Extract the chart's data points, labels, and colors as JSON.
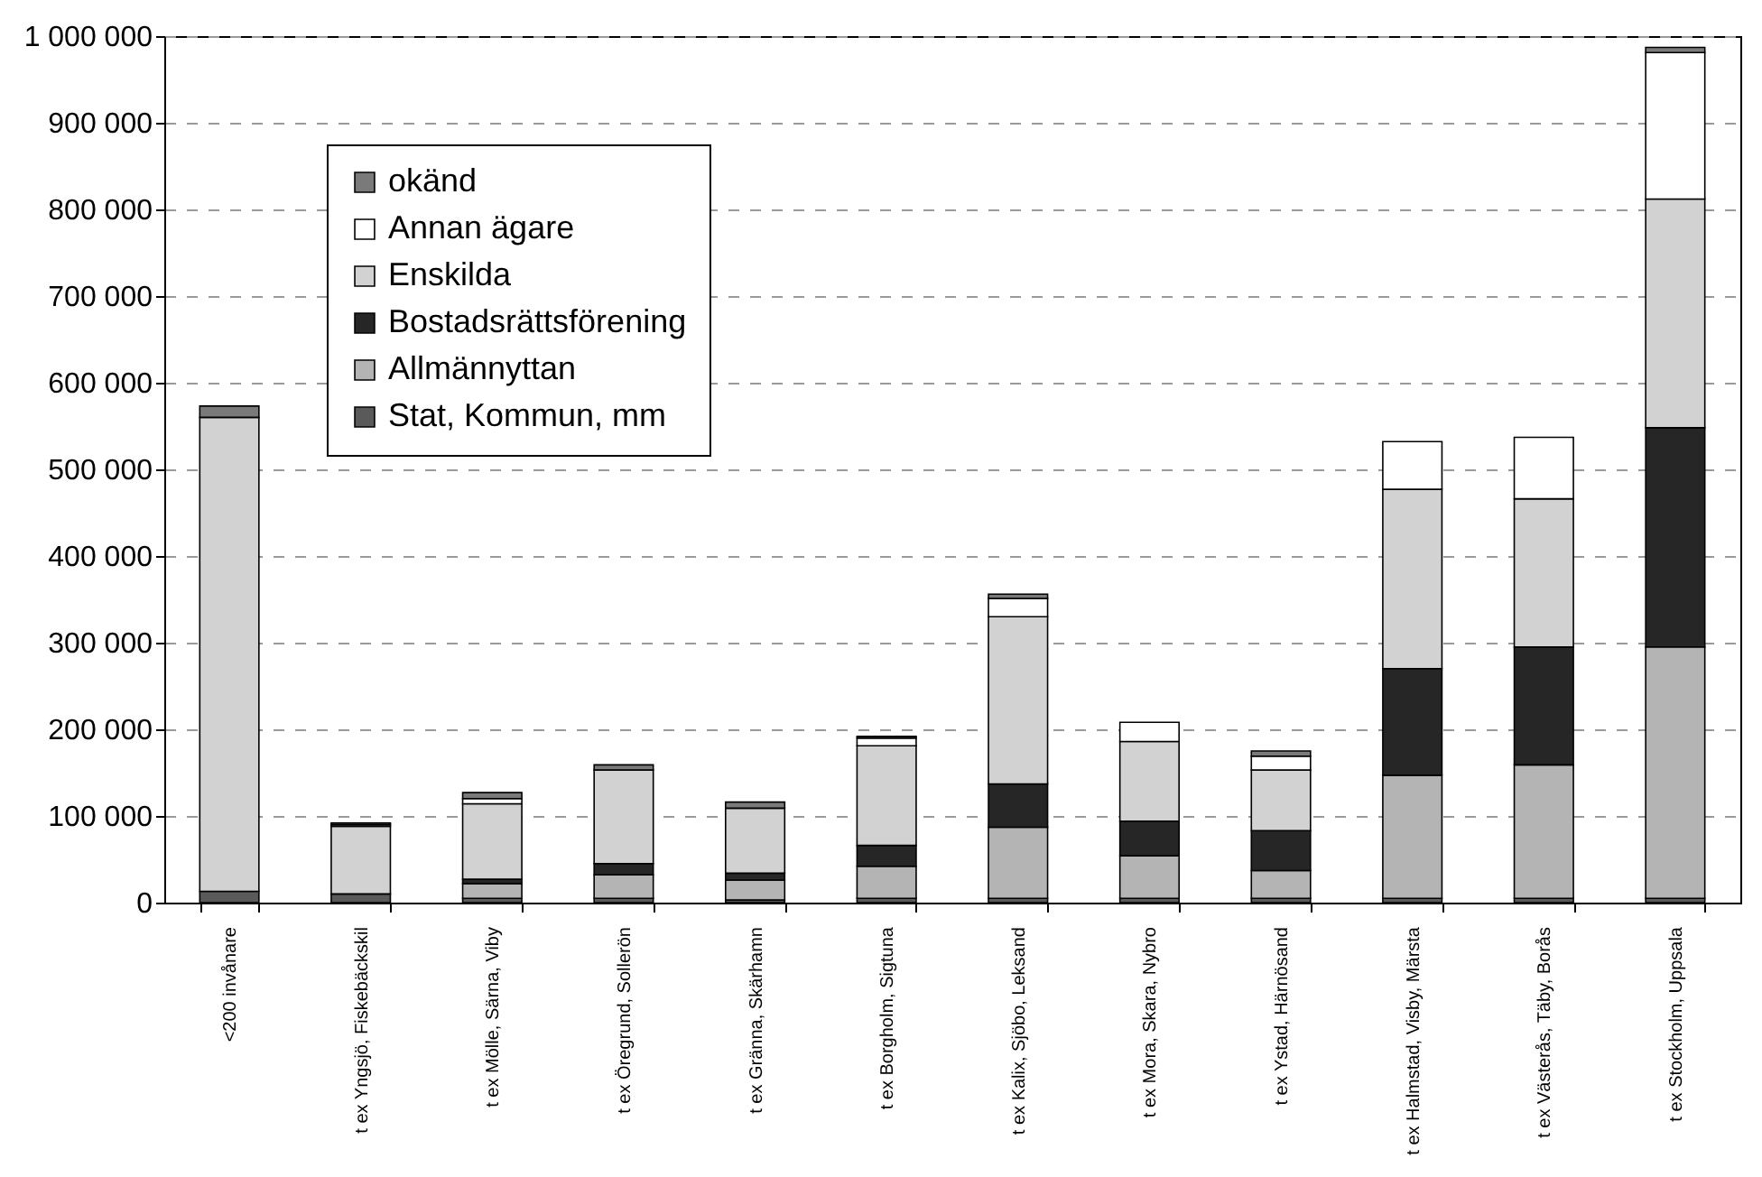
{
  "chart_data": {
    "type": "bar",
    "stacked": true,
    "categories": [
      "<200 invånare",
      "t ex Yngsjö, Fiskebäckskil",
      "t ex Mölle, Särna, Viby",
      "t ex Öregrund, Sollerön",
      "t ex Gränna, Skärhamn",
      "t ex Borgholm, Sigtuna",
      "t ex Kalix, Sjöbo, Leksand",
      "t ex Mora, Skara, Nybro",
      "t ex Ystad, Härnösand",
      "t ex Halmstad, Visby, Märsta",
      "t ex Västerås, Täby, Borås",
      "t ex Stockholm, Uppsala"
    ],
    "series": [
      {
        "name": "Stat, Kommun, mm",
        "color": "#5a5a5a",
        "values": [
          13000,
          10000,
          5000,
          5000,
          3000,
          5000,
          5000,
          5000,
          5000,
          5000,
          5000,
          5000
        ]
      },
      {
        "name": "Allmännyttan",
        "color": "#b4b4b4",
        "values": [
          0,
          0,
          17000,
          27000,
          23000,
          37000,
          82000,
          49000,
          32000,
          142000,
          154000,
          290000
        ]
      },
      {
        "name": "Bostadsrättsförening",
        "color": "#262626",
        "values": [
          0,
          0,
          5000,
          13000,
          8000,
          24000,
          50000,
          40000,
          46000,
          123000,
          136000,
          253000
        ]
      },
      {
        "name": "Enskilda",
        "color": "#d2d2d2",
        "values": [
          547000,
          78000,
          87000,
          108000,
          75000,
          115000,
          193000,
          92000,
          70000,
          207000,
          171000,
          264000
        ]
      },
      {
        "name": "Annan ägare",
        "color": "#ffffff",
        "values": [
          null,
          2000,
          6000,
          0,
          0,
          9000,
          21000,
          22000,
          16000,
          55000,
          71000,
          169000
        ]
      },
      {
        "name": "okänd",
        "color": "#7a7a7a",
        "values": [
          13000,
          2000,
          7000,
          6000,
          7000,
          2000,
          5000,
          0,
          6000,
          0,
          0,
          6000
        ]
      }
    ],
    "ylim": [
      0,
      1000000
    ],
    "yticks": [
      {
        "value": 0,
        "label": "0"
      },
      {
        "value": 100000,
        "label": "100 000"
      },
      {
        "value": 200000,
        "label": "200 000"
      },
      {
        "value": 300000,
        "label": "300 000"
      },
      {
        "value": 400000,
        "label": "400 000"
      },
      {
        "value": 500000,
        "label": "500 000"
      },
      {
        "value": 600000,
        "label": "600 000"
      },
      {
        "value": 700000,
        "label": "700 000"
      },
      {
        "value": 800000,
        "label": "800 000"
      },
      {
        "value": 900000,
        "label": "900 000"
      },
      {
        "value": 1000000,
        "label": "1 000 000"
      }
    ],
    "grid": "y",
    "legend": "top left"
  }
}
